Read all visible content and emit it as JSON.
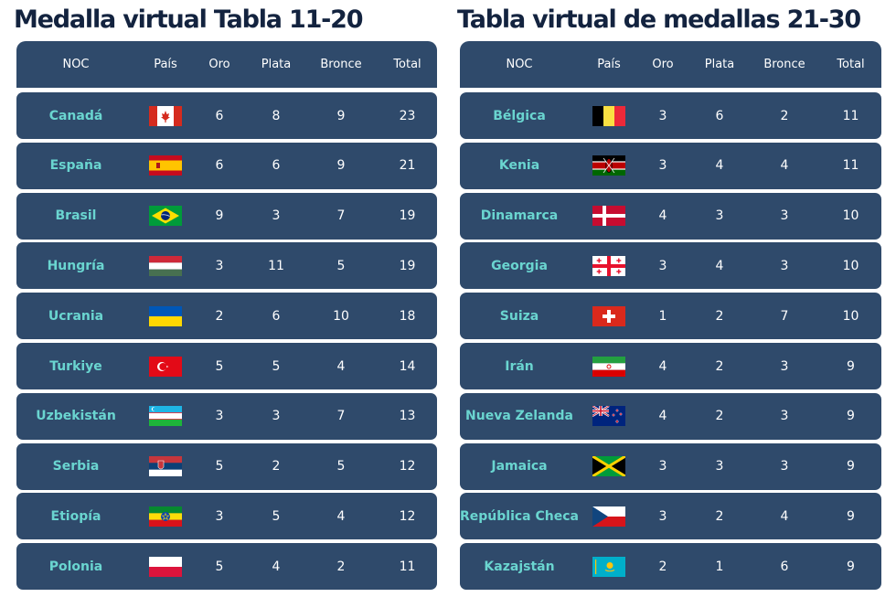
{
  "left": {
    "title": "Medalla virtual Tabla 11-20",
    "headers": {
      "noc": "NOC",
      "pais": "País",
      "oro": "Oro",
      "plata": "Plata",
      "bronce": "Bronce",
      "total": "Total"
    },
    "rows": [
      {
        "noc": "Canadá",
        "flag": "canada-flag-icon",
        "oro": "6",
        "plata": "8",
        "bronce": "9",
        "total": "23"
      },
      {
        "noc": "España",
        "flag": "spain-flag-icon",
        "oro": "6",
        "plata": "6",
        "bronce": "9",
        "total": "21"
      },
      {
        "noc": "Brasil",
        "flag": "brazil-flag-icon",
        "oro": "9",
        "plata": "3",
        "bronce": "7",
        "total": "19"
      },
      {
        "noc": "Hungría",
        "flag": "hungary-flag-icon",
        "oro": "3",
        "plata": "11",
        "bronce": "5",
        "total": "19"
      },
      {
        "noc": "Ucrania",
        "flag": "ukraine-flag-icon",
        "oro": "2",
        "plata": "6",
        "bronce": "10",
        "total": "18"
      },
      {
        "noc": "Turkiye",
        "flag": "turkey-flag-icon",
        "oro": "5",
        "plata": "5",
        "bronce": "4",
        "total": "14"
      },
      {
        "noc": "Uzbekistán",
        "flag": "uzbekistan-flag-icon",
        "oro": "3",
        "plata": "3",
        "bronce": "7",
        "total": "13"
      },
      {
        "noc": "Serbia",
        "flag": "serbia-flag-icon",
        "oro": "5",
        "plata": "2",
        "bronce": "5",
        "total": "12"
      },
      {
        "noc": "Etiopía",
        "flag": "ethiopia-flag-icon",
        "oro": "3",
        "plata": "5",
        "bronce": "4",
        "total": "12"
      },
      {
        "noc": "Polonia",
        "flag": "poland-flag-icon",
        "oro": "5",
        "plata": "4",
        "bronce": "2",
        "total": "11"
      }
    ]
  },
  "right": {
    "title": "Tabla virtual de medallas 21-30",
    "headers": {
      "noc": "NOC",
      "pais": "País",
      "oro": "Oro",
      "plata": "Plata",
      "bronce": "Bronce",
      "total": "Total"
    },
    "rows": [
      {
        "noc": "Bélgica",
        "flag": "belgium-flag-icon",
        "oro": "3",
        "plata": "6",
        "bronce": "2",
        "total": "11"
      },
      {
        "noc": "Kenia",
        "flag": "kenya-flag-icon",
        "oro": "3",
        "plata": "4",
        "bronce": "4",
        "total": "11"
      },
      {
        "noc": "Dinamarca",
        "flag": "denmark-flag-icon",
        "oro": "4",
        "plata": "3",
        "bronce": "3",
        "total": "10"
      },
      {
        "noc": "Georgia",
        "flag": "georgia-flag-icon",
        "oro": "3",
        "plata": "4",
        "bronce": "3",
        "total": "10"
      },
      {
        "noc": "Suiza",
        "flag": "switzerland-flag-icon",
        "oro": "1",
        "plata": "2",
        "bronce": "7",
        "total": "10"
      },
      {
        "noc": "Irán",
        "flag": "iran-flag-icon",
        "oro": "4",
        "plata": "2",
        "bronce": "3",
        "total": "9"
      },
      {
        "noc": "Nueva Zelanda",
        "flag": "new-zealand-flag-icon",
        "oro": "4",
        "plata": "2",
        "bronce": "3",
        "total": "9"
      },
      {
        "noc": "Jamaica",
        "flag": "jamaica-flag-icon",
        "oro": "3",
        "plata": "3",
        "bronce": "3",
        "total": "9"
      },
      {
        "noc": "República Checa",
        "flag": "czech-republic-flag-icon",
        "oro": "3",
        "plata": "2",
        "bronce": "4",
        "total": "9"
      },
      {
        "noc": "Kazajstán",
        "flag": "kazakhstan-flag-icon",
        "oro": "2",
        "plata": "1",
        "bronce": "6",
        "total": "9"
      }
    ]
  }
}
